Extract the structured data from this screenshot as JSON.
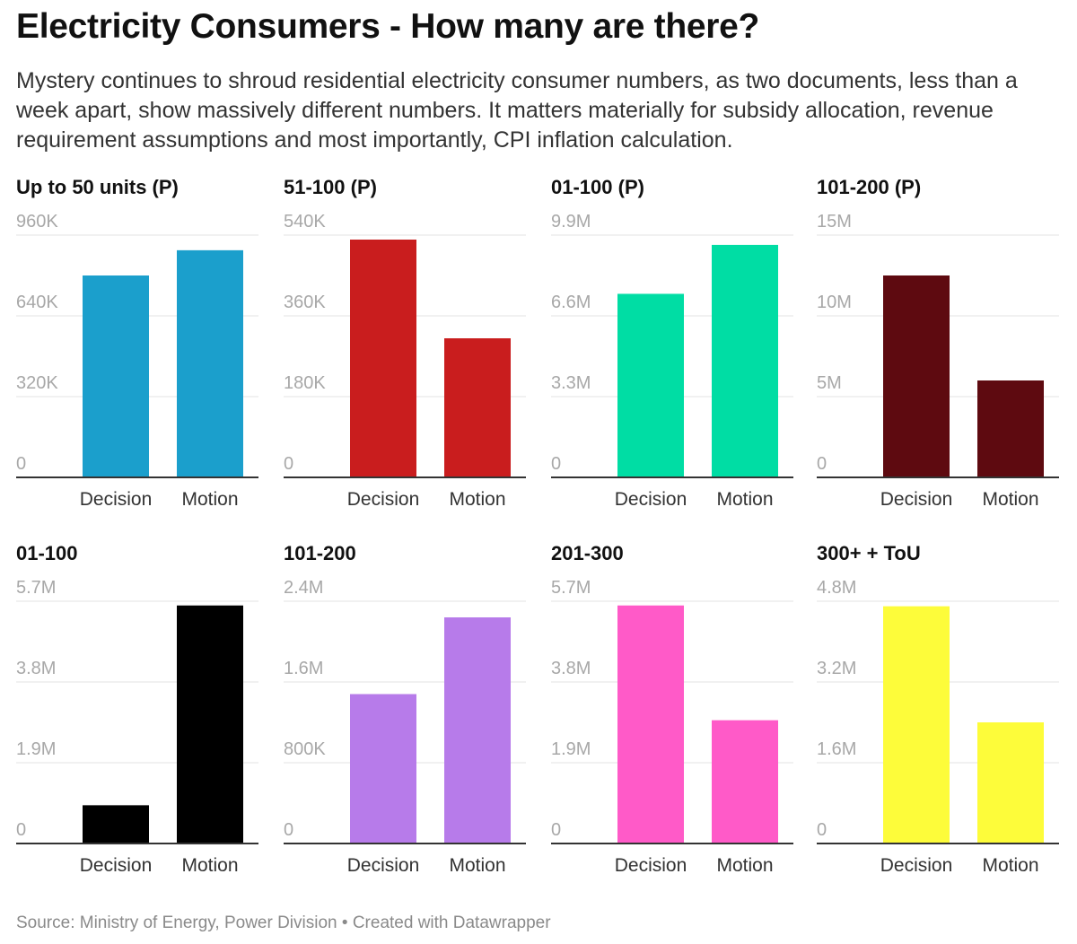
{
  "title": "Electricity Consumers - How many are there?",
  "subtitle": "Mystery continues to shroud residential electricity consumer numbers, as two documents, less than a week apart, show massively different numbers. It matters materially for subsidy allocation, revenue requirement assumptions and most importantly, CPI inflation calculation.",
  "footer": {
    "source": "Source: Ministry of Energy, Power Division",
    "separator": " • ",
    "credit": "Created with Datawrapper"
  },
  "chart_data": [
    {
      "type": "bar",
      "title": "Up to 50 units (P)",
      "categories": [
        "Decision",
        "Motion"
      ],
      "values": [
        800000,
        900000
      ],
      "ylim": [
        0,
        960000
      ],
      "yticks": [
        "0",
        "320K",
        "640K",
        "960K"
      ],
      "color": "#1b9fcc",
      "grid": true
    },
    {
      "type": "bar",
      "title": "51-100 (P)",
      "categories": [
        "Decision",
        "Motion"
      ],
      "values": [
        530000,
        310000
      ],
      "ylim": [
        0,
        540000
      ],
      "yticks": [
        "0",
        "180K",
        "360K",
        "540K"
      ],
      "color": "#c91d1e",
      "grid": true
    },
    {
      "type": "bar",
      "title": "01-100 (P)",
      "categories": [
        "Decision",
        "Motion"
      ],
      "values": [
        7500000,
        9500000
      ],
      "ylim": [
        0,
        9900000
      ],
      "yticks": [
        "0",
        "3.3M",
        "6.6M",
        "9.9M"
      ],
      "color": "#00dda4",
      "grid": true
    },
    {
      "type": "bar",
      "title": "101-200 (P)",
      "categories": [
        "Decision",
        "Motion"
      ],
      "values": [
        12500000,
        6000000
      ],
      "ylim": [
        0,
        15000000
      ],
      "yticks": [
        "0",
        "5M",
        "10M",
        "15M"
      ],
      "color": "#5e0a10",
      "grid": true
    },
    {
      "type": "bar",
      "title": "01-100",
      "categories": [
        "Decision",
        "Motion"
      ],
      "values": [
        900000,
        5600000
      ],
      "ylim": [
        0,
        5700000
      ],
      "yticks": [
        "0",
        "1.9M",
        "3.8M",
        "5.7M"
      ],
      "color": "#000000",
      "grid": true
    },
    {
      "type": "bar",
      "title": "101-200",
      "categories": [
        "Decision",
        "Motion"
      ],
      "values": [
        1480000,
        2240000
      ],
      "ylim": [
        0,
        2400000
      ],
      "yticks": [
        "0",
        "800K",
        "1.6M",
        "2.4M"
      ],
      "color": "#b77bea",
      "grid": true
    },
    {
      "type": "bar",
      "title": "201-300",
      "categories": [
        "Decision",
        "Motion"
      ],
      "values": [
        5600000,
        2900000
      ],
      "ylim": [
        0,
        5700000
      ],
      "yticks": [
        "0",
        "1.9M",
        "3.8M",
        "5.7M"
      ],
      "color": "#ff5ac8",
      "grid": true
    },
    {
      "type": "bar",
      "title": "300+ + ToU",
      "categories": [
        "Decision",
        "Motion"
      ],
      "values": [
        4700000,
        2400000
      ],
      "ylim": [
        0,
        4800000
      ],
      "yticks": [
        "0",
        "1.6M",
        "3.2M",
        "4.8M"
      ],
      "color": "#fdfc3a",
      "grid": true
    }
  ]
}
